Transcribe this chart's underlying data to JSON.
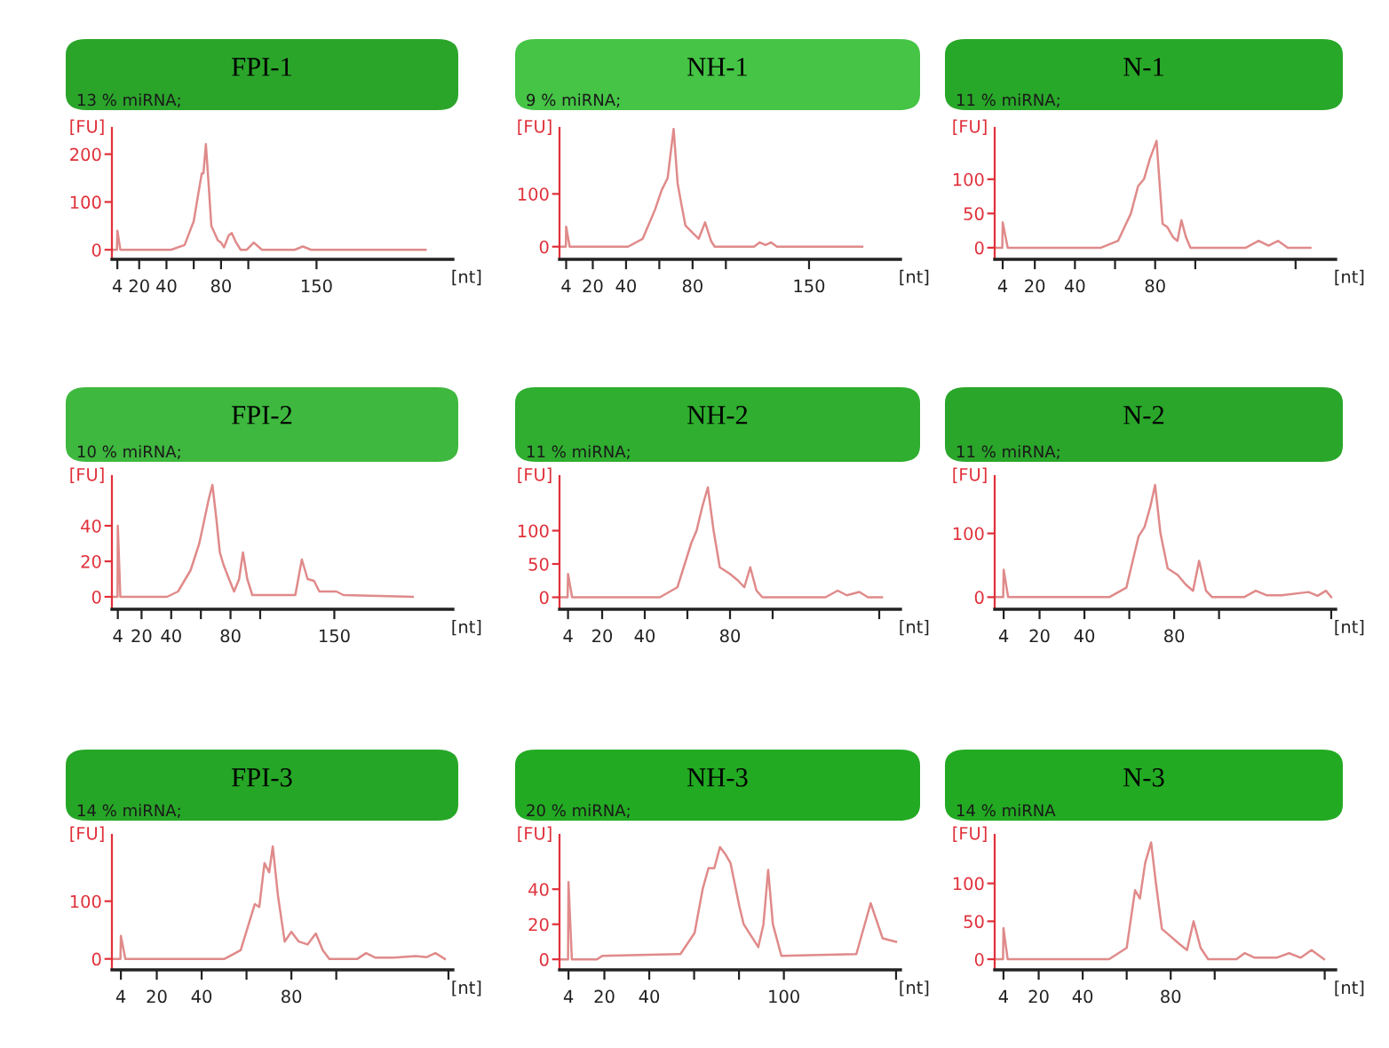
{
  "chart_data": [
    {
      "type": "line",
      "title": "FPI-1",
      "subtitle": "13 % miRNA;",
      "xlabel": "[nt]",
      "ylabel": "[FU]",
      "xlim": [
        0,
        250
      ],
      "ylim": [
        -20,
        255
      ],
      "xticks": [
        4,
        20,
        40,
        {
          "value": 60,
          "label": null
        },
        80,
        {
          "value": 100,
          "label": null
        },
        150
      ],
      "yticks": [
        0,
        100,
        200
      ],
      "x": [
        0,
        3.7,
        4,
        6.2,
        43.3,
        53.3,
        60,
        63.5,
        65.9,
        67.1,
        68.9,
        71.3,
        72.9,
        75.3,
        77.6,
        80,
        82.2,
        85.6,
        87.8,
        91.1,
        94.4,
        98.9,
        104,
        110,
        134,
        140,
        146,
        230
      ],
      "series": [
        {
          "color": "#e08a8a",
          "values": [
            0,
            0,
            40,
            0,
            0,
            10,
            60,
            120,
            160,
            160,
            221,
            120,
            50,
            35,
            20,
            15,
            5,
            30,
            35,
            15,
            0,
            0,
            15,
            0,
            0,
            7,
            0,
            0
          ]
        }
      ]
    },
    {
      "type": "line",
      "title": "NH-1",
      "subtitle": "9 % miRNA;",
      "xlabel": "[nt]",
      "ylabel": "[FU]",
      "xlim": [
        0,
        205
      ],
      "ylim": [
        -24,
        225
      ],
      "xticks": [
        4,
        20,
        40,
        {
          "value": 60,
          "label": null
        },
        80,
        {
          "value": 100,
          "label": null
        },
        150
      ],
      "yticks": [
        0,
        100
      ],
      "x": [
        0,
        3.8,
        4,
        6.1,
        41.2,
        50,
        57.4,
        61.4,
        65,
        68.6,
        71,
        73.3,
        75.7,
        80.4,
        83.7,
        87.5,
        91.2,
        93.3,
        116.9,
        120.3,
        123.8,
        127.2,
        130.7,
        182
      ],
      "series": [
        {
          "color": "#e08a8a",
          "values": [
            0,
            0,
            38,
            0,
            0,
            15,
            70,
            107,
            130,
            223,
            120,
            80,
            40,
            25,
            15,
            46,
            10,
            0,
            0,
            8,
            3,
            8,
            0,
            0
          ]
        }
      ]
    },
    {
      "type": "line",
      "title": "N-1",
      "subtitle": "11 % miRNA;",
      "xlabel": "[nt]",
      "ylabel": "[FU]",
      "xlim": [
        0,
        170
      ],
      "ylim": [
        -17,
        175
      ],
      "xticks": [
        4,
        20,
        40,
        {
          "value": 60,
          "label": null
        },
        80,
        {
          "value": 100,
          "label": null
        },
        {
          "value": 150,
          "label": null
        }
      ],
      "yticks": [
        0,
        50,
        100
      ],
      "x": [
        0,
        3.8,
        4,
        6.5,
        53,
        61.5,
        67.9,
        71.5,
        74.4,
        77.4,
        80.7,
        82.3,
        83.7,
        86.1,
        89,
        91.1,
        93.1,
        95.4,
        97.6,
        125.2,
        131.6,
        136.5,
        141.3,
        146.1,
        157.4
      ],
      "series": [
        {
          "color": "#e08a8a",
          "values": [
            0,
            0,
            37,
            0,
            0,
            10,
            50,
            90,
            100,
            130,
            156,
            90,
            35,
            30,
            15,
            10,
            40,
            15,
            0,
            0,
            10,
            3,
            10,
            0,
            0
          ]
        }
      ]
    },
    {
      "type": "line",
      "title": "FPI-2",
      "subtitle": "10 % miRNA;",
      "xlabel": "[nt]",
      "ylabel": "[FU]",
      "xlim": [
        0,
        230
      ],
      "ylim": [
        -7,
        68
      ],
      "xticks": [
        4,
        20,
        40,
        {
          "value": 60,
          "label": null
        },
        80,
        {
          "value": 100,
          "label": null
        },
        150
      ],
      "yticks": [
        0,
        20,
        40
      ],
      "x": [
        0,
        3.8,
        4,
        5.7,
        37.2,
        44.6,
        53.1,
        58.9,
        61.5,
        65.3,
        67.8,
        70.3,
        72.8,
        75.3,
        79,
        82.4,
        85.8,
        88.4,
        91.3,
        94.7,
        123.7,
        128.1,
        132,
        136.3,
        139.9,
        151.4,
        156.1,
        202.9
      ],
      "series": [
        {
          "color": "#e08a8a",
          "values": [
            0,
            0,
            40,
            0,
            0,
            3,
            15,
            30,
            40,
            55,
            63,
            45,
            25,
            18,
            10,
            3,
            10,
            25,
            10,
            1,
            1,
            21,
            10,
            9,
            3,
            3,
            1,
            0
          ]
        }
      ]
    },
    {
      "type": "line",
      "title": "NH-2",
      "subtitle": "11 % miRNA;",
      "xlabel": "[nt]",
      "ylabel": "[FU]",
      "xlim": [
        0,
        160
      ],
      "ylim": [
        -18,
        182
      ],
      "xticks": [
        4,
        20,
        40,
        {
          "value": 60,
          "label": null
        },
        80,
        {
          "value": 100,
          "label": null
        },
        {
          "value": 150,
          "label": null
        }
      ],
      "yticks": [
        0,
        50,
        100
      ],
      "x": [
        0,
        3.8,
        4,
        5.9,
        47.1,
        55.3,
        61.9,
        64.3,
        67,
        69.6,
        72.3,
        75.2,
        80,
        83.8,
        86.7,
        89.5,
        92.4,
        95.2,
        124.8,
        130.5,
        134.8,
        140.7,
        144.7,
        151.3
      ],
      "series": [
        {
          "color": "#e08a8a",
          "values": [
            0,
            0,
            35,
            0,
            0,
            15,
            82,
            100,
            136,
            165,
            100,
            45,
            35,
            25,
            15,
            45,
            10,
            0,
            0,
            10,
            3,
            8,
            0,
            0
          ]
        }
      ]
    },
    {
      "type": "line",
      "title": "N-2",
      "subtitle": "11 % miRNA;",
      "xlabel": "[nt]",
      "ylabel": "[FU]",
      "xlim": [
        0,
        152
      ],
      "ylim": [
        -19,
        190
      ],
      "xticks": [
        4,
        20,
        40,
        {
          "value": 60,
          "label": null
        },
        80,
        {
          "value": 100,
          "label": null
        },
        {
          "value": 150,
          "label": null
        }
      ],
      "yticks": [
        0,
        100
      ],
      "x": [
        0,
        3.8,
        4,
        6,
        51.1,
        58.7,
        64.1,
        66.8,
        69.3,
        71.5,
        73.9,
        77.1,
        81.5,
        85.1,
        88.4,
        91.1,
        94.2,
        96.9,
        111.1,
        116.4,
        121.1,
        127.9,
        139.9,
        143.9,
        147.7,
        150
      ],
      "series": [
        {
          "color": "#e08a8a",
          "values": [
            0,
            0,
            43,
            0,
            0,
            15,
            95,
            110,
            141,
            176,
            100,
            45,
            35,
            20,
            10,
            57,
            10,
            0,
            0,
            10,
            3,
            3,
            8,
            2,
            10,
            0
          ]
        }
      ]
    },
    {
      "type": "line",
      "title": "FPI-3",
      "subtitle": "14 % miRNA;",
      "xlabel": "[nt]",
      "ylabel": "[FU]",
      "xlim": [
        0,
        152
      ],
      "ylim": [
        -19,
        215
      ],
      "xticks": [
        4,
        20,
        40,
        {
          "value": 60,
          "label": null
        },
        80,
        {
          "value": 100,
          "label": null
        },
        {
          "value": 150,
          "label": null
        }
      ],
      "yticks": [
        0,
        100
      ],
      "x": [
        0,
        3.8,
        4,
        6,
        50.2,
        57.4,
        63.7,
        65.7,
        68,
        70.1,
        71.7,
        74,
        77,
        80,
        83.3,
        87.2,
        90.9,
        94,
        96.9,
        109.4,
        113.3,
        117.5,
        125.6,
        135.4,
        140.3,
        144.2,
        148.4
      ],
      "series": [
        {
          "color": "#e08a8a",
          "values": [
            0,
            0,
            40,
            0,
            0,
            15,
            95,
            90,
            166,
            150,
            195,
            110,
            30,
            47,
            30,
            25,
            44,
            15,
            0,
            0,
            10,
            2,
            2,
            5,
            3,
            10,
            0
          ]
        }
      ]
    },
    {
      "type": "line",
      "title": "NH-3",
      "subtitle": "20 % miRNA;",
      "xlabel": "[nt]",
      "ylabel": "[FU]",
      "xlim": [
        0,
        152
      ],
      "ylim": [
        -6,
        71
      ],
      "xticks": [
        4,
        20,
        40,
        {
          "value": 60,
          "label": null
        },
        {
          "value": 80,
          "label": null
        },
        100,
        {
          "value": 150,
          "label": null
        }
      ],
      "yticks": [
        0,
        20,
        40
      ],
      "x": [
        0,
        3.8,
        4,
        5.5,
        16.7,
        19.1,
        53.9,
        60.2,
        63.8,
        66.4,
        69,
        71.5,
        73.9,
        76.2,
        80.2,
        82.1,
        88.6,
        90.9,
        93,
        95.1,
        98.9,
        132.3,
        138.7,
        144,
        150
      ],
      "series": [
        {
          "color": "#e08a8a",
          "values": [
            0,
            0,
            44,
            0,
            0,
            2,
            3,
            15,
            40,
            52,
            52,
            64,
            60,
            55,
            30,
            20,
            7,
            20,
            51,
            20,
            2,
            3,
            32,
            12,
            10
          ]
        }
      ]
    },
    {
      "type": "line",
      "title": "N-3",
      "subtitle": "14 % miRNA",
      "xlabel": "[nt]",
      "ylabel": "[FU]",
      "xlim": [
        0,
        155
      ],
      "ylim": [
        -14,
        164
      ],
      "xticks": [
        4,
        20,
        40,
        {
          "value": 60,
          "label": null
        },
        80,
        {
          "value": 100,
          "label": null
        },
        {
          "value": 150,
          "label": null
        }
      ],
      "yticks": [
        0,
        50,
        100
      ],
      "x": [
        0,
        3.8,
        4,
        5.9,
        52,
        60,
        63.8,
        66,
        68.4,
        71.1,
        73.3,
        76,
        80,
        84,
        87.4,
        90.4,
        93.6,
        97,
        109.9,
        113.6,
        118.2,
        128.1,
        133.8,
        139.1,
        144,
        149.7
      ],
      "series": [
        {
          "color": "#e08a8a",
          "values": [
            0,
            0,
            41,
            0,
            0,
            15,
            91,
            80,
            127,
            154,
            100,
            40,
            30,
            20,
            12,
            50,
            15,
            0,
            0,
            8,
            2,
            2,
            8,
            2,
            12,
            0
          ]
        }
      ]
    }
  ]
}
